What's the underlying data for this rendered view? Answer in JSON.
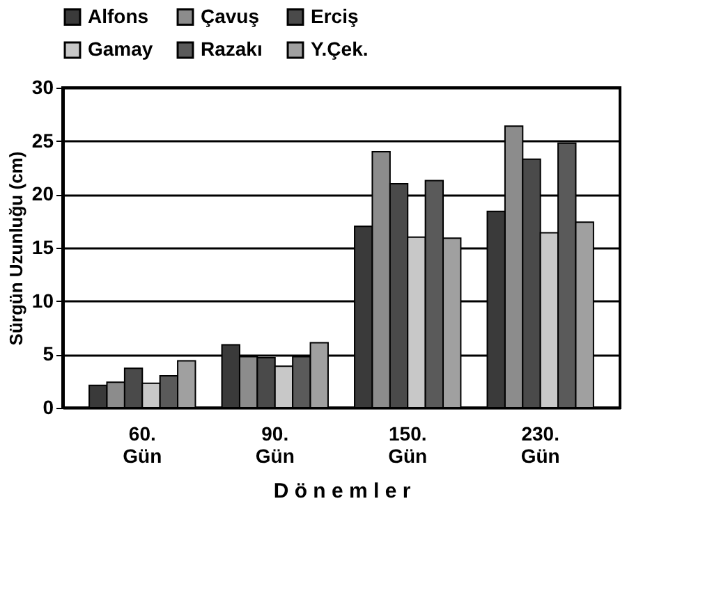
{
  "chart_data": {
    "type": "bar",
    "xlabel": "D ö n e m l e r",
    "ylabel": "Sürgün Uzunluğu (cm)",
    "categories": [
      "60. Gün",
      "90. Gün",
      "150. Gün",
      "230. Gün"
    ],
    "series": [
      {
        "name": "Alfons",
        "color": "#3a3a3a",
        "values": [
          2.1,
          5.9,
          17.0,
          18.4
        ]
      },
      {
        "name": "Çavuş",
        "color": "#8c8c8c",
        "values": [
          2.4,
          4.8,
          24.0,
          26.4
        ]
      },
      {
        "name": "Erciş",
        "color": "#4a4a4a",
        "values": [
          3.7,
          4.7,
          21.0,
          23.3
        ]
      },
      {
        "name": "Gamay",
        "color": "#c8c8c8",
        "values": [
          2.3,
          3.9,
          16.0,
          16.4
        ]
      },
      {
        "name": "Razakı",
        "color": "#5a5a5a",
        "values": [
          3.0,
          4.8,
          21.3,
          24.8
        ]
      },
      {
        "name": "Y.Çek.",
        "color": "#a0a0a0",
        "values": [
          4.4,
          6.1,
          15.9,
          17.4
        ]
      }
    ],
    "ylim": [
      0,
      30
    ],
    "yticks": [
      0,
      5,
      10,
      15,
      20,
      25,
      30
    ],
    "grid": "y",
    "legend": "top"
  }
}
